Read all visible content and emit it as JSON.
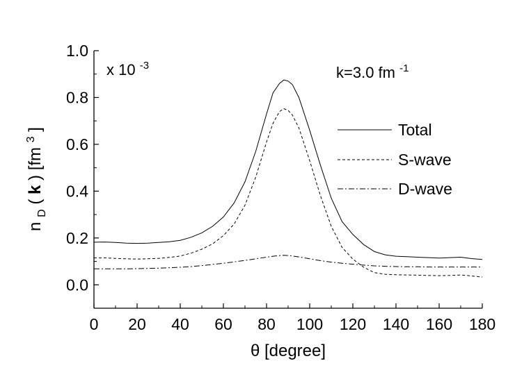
{
  "chart_data": {
    "type": "line",
    "multiplier_label": "x 10",
    "multiplier_exponent": "-3",
    "annotation_prefix": "k=3.0 fm",
    "annotation_exponent": "-1",
    "xlabel": "θ [degree]",
    "ylabel_parts": {
      "base": "n",
      "sub": "D",
      "mid1": "(",
      "bold": "k",
      "mid2": ") [fm",
      "sup": "3",
      "end": "]"
    },
    "xlim": [
      0,
      180
    ],
    "ylim": [
      -0.1,
      1.0
    ],
    "xticks": [
      0,
      20,
      40,
      60,
      80,
      100,
      120,
      140,
      160,
      180
    ],
    "xtick_labels": [
      "0",
      "20",
      "40",
      "60",
      "80",
      "100",
      "120",
      "140",
      "160",
      "180"
    ],
    "yticks": [
      0.0,
      0.2,
      0.4,
      0.6,
      0.8,
      1.0
    ],
    "ytick_labels": [
      "0.0",
      "0.2",
      "0.4",
      "0.6",
      "0.8",
      "1.0"
    ],
    "grid": false,
    "legend_position": "right-middle",
    "x": [
      0,
      5,
      10,
      15,
      20,
      25,
      30,
      35,
      40,
      45,
      50,
      55,
      60,
      65,
      70,
      75,
      80,
      83,
      86,
      88,
      90,
      92,
      95,
      100,
      105,
      110,
      115,
      120,
      125,
      130,
      135,
      140,
      145,
      150,
      155,
      160,
      165,
      170,
      175,
      180
    ],
    "series": [
      {
        "name": "Total",
        "dash": "solid",
        "values": [
          0.182,
          0.183,
          0.181,
          0.178,
          0.177,
          0.178,
          0.181,
          0.184,
          0.19,
          0.203,
          0.222,
          0.25,
          0.29,
          0.35,
          0.44,
          0.57,
          0.73,
          0.82,
          0.86,
          0.875,
          0.87,
          0.855,
          0.8,
          0.66,
          0.51,
          0.37,
          0.27,
          0.215,
          0.172,
          0.142,
          0.128,
          0.122,
          0.12,
          0.118,
          0.116,
          0.114,
          0.116,
          0.118,
          0.112,
          0.108
        ]
      },
      {
        "name": "S-wave",
        "dash": "dash",
        "values": [
          0.115,
          0.115,
          0.113,
          0.111,
          0.11,
          0.111,
          0.113,
          0.117,
          0.123,
          0.135,
          0.152,
          0.175,
          0.21,
          0.26,
          0.34,
          0.46,
          0.61,
          0.69,
          0.74,
          0.752,
          0.745,
          0.725,
          0.67,
          0.53,
          0.38,
          0.25,
          0.16,
          0.11,
          0.075,
          0.052,
          0.045,
          0.043,
          0.042,
          0.041,
          0.04,
          0.039,
          0.04,
          0.042,
          0.038,
          0.033
        ]
      },
      {
        "name": "D-wave",
        "dash": "dashdot",
        "values": [
          0.068,
          0.068,
          0.068,
          0.068,
          0.069,
          0.07,
          0.071,
          0.073,
          0.075,
          0.078,
          0.082,
          0.087,
          0.092,
          0.098,
          0.104,
          0.111,
          0.118,
          0.122,
          0.125,
          0.126,
          0.125,
          0.123,
          0.119,
          0.111,
          0.103,
          0.097,
          0.092,
          0.088,
          0.084,
          0.081,
          0.079,
          0.078,
          0.077,
          0.077,
          0.076,
          0.076,
          0.076,
          0.076,
          0.076,
          0.076
        ]
      }
    ]
  }
}
